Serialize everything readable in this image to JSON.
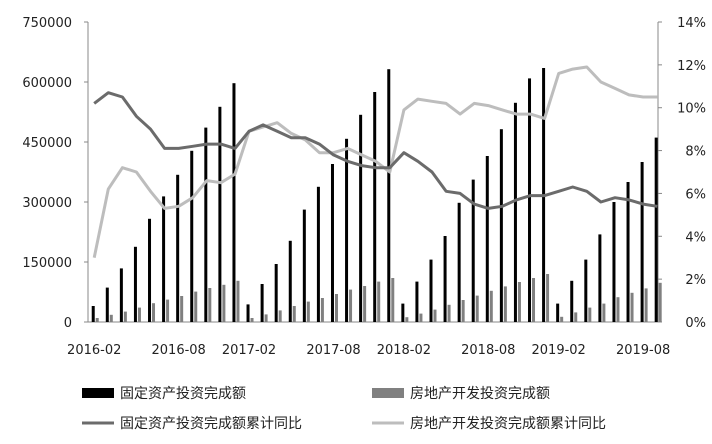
{
  "chart_data": {
    "type": "bar+line",
    "title": "",
    "xlabel": "",
    "ylabel": "",
    "x_tick_labels": [
      "2016-02",
      "2016-08",
      "2017-02",
      "2017-08",
      "2018-02",
      "2018-08",
      "2019-02",
      "2019-08"
    ],
    "ylim_left": [
      0,
      750000
    ],
    "yticks_left": [
      "0",
      "150000",
      "300000",
      "450000",
      "600000",
      "750000"
    ],
    "ylim_right": [
      0,
      14
    ],
    "yticks_right": [
      "0%",
      "2%",
      "4%",
      "6%",
      "8%",
      "10%",
      "12%",
      "14%"
    ],
    "grid": false,
    "legend_position": "bottom",
    "colors": {
      "fixed_bar": "#000000",
      "real_bar": "#808080",
      "fixed_line": "#6b6b6b",
      "real_line": "#bdbdbd"
    },
    "x": [
      "2016-02",
      "2016-03",
      "2016-04",
      "2016-05",
      "2016-06",
      "2016-07",
      "2016-08",
      "2016-09",
      "2016-10",
      "2016-11",
      "2016-12",
      "2017-02",
      "2017-03",
      "2017-04",
      "2017-05",
      "2017-06",
      "2017-07",
      "2017-08",
      "2017-09",
      "2017-10",
      "2017-11",
      "2017-12",
      "2018-02",
      "2018-03",
      "2018-04",
      "2018-05",
      "2018-06",
      "2018-07",
      "2018-08",
      "2018-09",
      "2018-10",
      "2018-11",
      "2018-12",
      "2019-02",
      "2019-03",
      "2019-04",
      "2019-05",
      "2019-06",
      "2019-07",
      "2019-08",
      "2019-09"
    ],
    "series": [
      {
        "name": "固定资产投资完成额",
        "type": "bar",
        "axis": "left",
        "values": [
          40000,
          86000,
          134000,
          188000,
          258000,
          314000,
          368000,
          428000,
          486000,
          538000,
          597000,
          44000,
          95000,
          145000,
          203000,
          281000,
          338000,
          395000,
          458000,
          518000,
          575000,
          632000,
          46000,
          101000,
          156000,
          215000,
          298000,
          356000,
          415000,
          482000,
          548000,
          609000,
          635000,
          46000,
          103000,
          156000,
          219000,
          300000,
          350000,
          400000,
          461000
        ]
      },
      {
        "name": "房地产开发投资完成额",
        "type": "bar",
        "axis": "left",
        "values": [
          10000,
          18000,
          26000,
          36000,
          47000,
          56000,
          65000,
          76000,
          85000,
          93000,
          103000,
          10000,
          19000,
          29000,
          40000,
          51000,
          60000,
          70000,
          81000,
          90000,
          101000,
          110000,
          12000,
          21000,
          31000,
          43000,
          55000,
          66000,
          78000,
          89000,
          100000,
          110000,
          120000,
          13000,
          24000,
          36000,
          46000,
          62000,
          73000,
          84000,
          98000
        ]
      },
      {
        "name": "固定资产投资完成额累计同比",
        "type": "line",
        "axis": "right",
        "values": [
          10.2,
          10.7,
          10.5,
          9.6,
          9.0,
          8.1,
          8.1,
          8.2,
          8.3,
          8.3,
          8.1,
          8.9,
          9.2,
          8.9,
          8.6,
          8.6,
          8.3,
          7.8,
          7.5,
          7.3,
          7.2,
          7.2,
          7.9,
          7.5,
          7.0,
          6.1,
          6.0,
          5.5,
          5.3,
          5.4,
          5.7,
          5.9,
          5.9,
          6.1,
          6.3,
          6.1,
          5.6,
          5.8,
          5.7,
          5.5,
          5.4
        ]
      },
      {
        "name": "房地产开发投资完成额累计同比",
        "type": "line",
        "axis": "right",
        "values": [
          3.0,
          6.2,
          7.2,
          7.0,
          6.1,
          5.3,
          5.4,
          5.8,
          6.6,
          6.5,
          6.9,
          8.9,
          9.1,
          9.3,
          8.8,
          8.5,
          7.9,
          7.9,
          8.1,
          7.8,
          7.5,
          7.0,
          9.9,
          10.4,
          10.3,
          10.2,
          9.7,
          10.2,
          10.1,
          9.9,
          9.7,
          9.7,
          9.5,
          11.6,
          11.8,
          11.9,
          11.2,
          10.9,
          10.6,
          10.5,
          10.5
        ]
      }
    ]
  }
}
